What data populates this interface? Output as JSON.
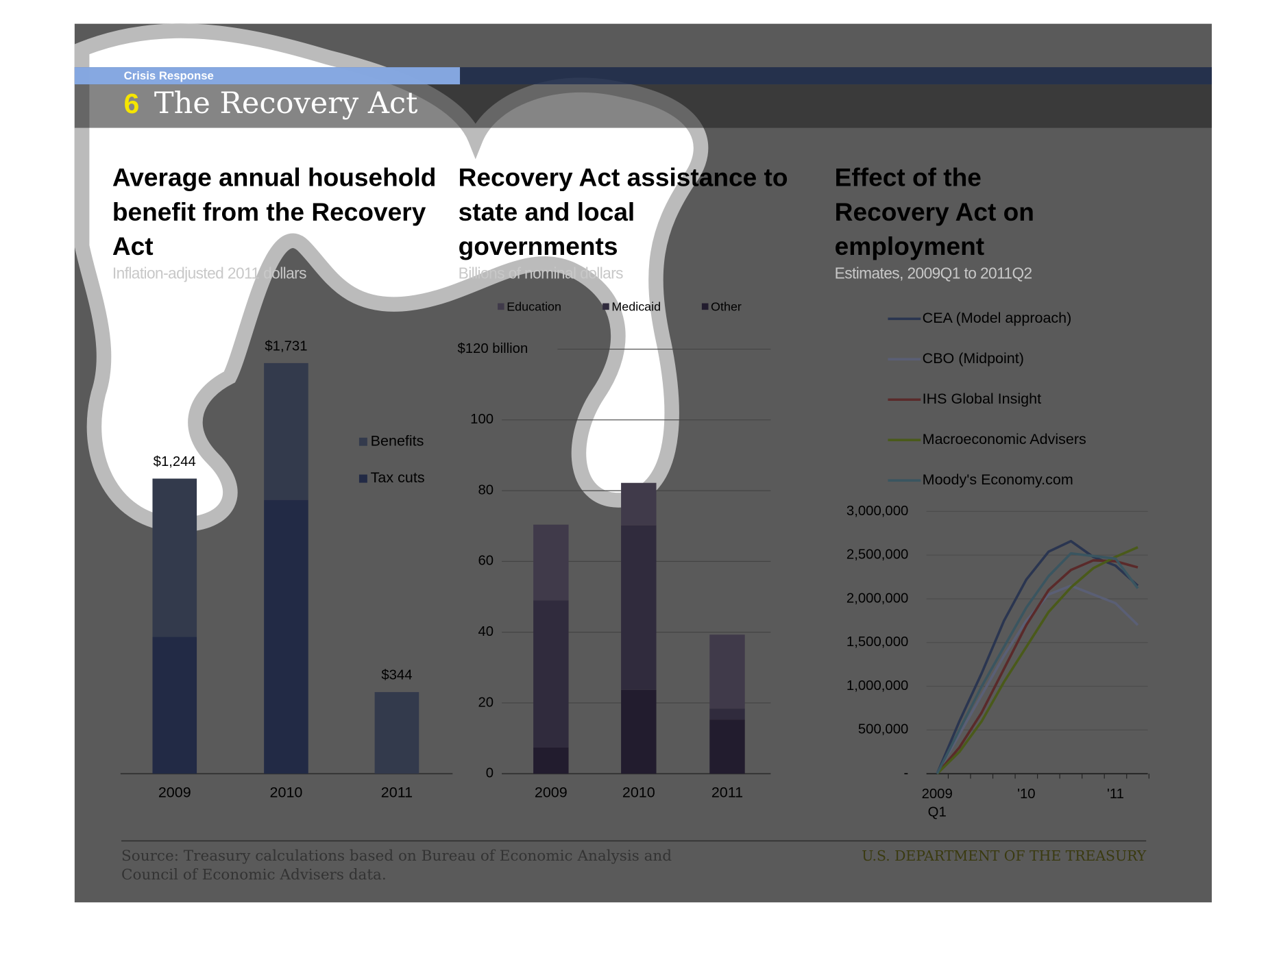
{
  "header": {
    "section": "Crisis Response",
    "number": "6",
    "title": "The Recovery Act"
  },
  "chart_data": [
    {
      "type": "stacked_bar",
      "title": "Average annual household benefit from the Recovery Act",
      "subtitle": "Inflation-adjusted 2011 dollars",
      "categories": [
        "2009",
        "2010",
        "2011"
      ],
      "series": [
        {
          "name": "Benefits",
          "color": "#333a4c",
          "values": [
            667,
            577,
            344
          ]
        },
        {
          "name": "Tax cuts",
          "color": "#222a45",
          "values": [
            577,
            1154,
            0
          ]
        }
      ],
      "totals": [
        1244,
        1731,
        344
      ],
      "total_labels": [
        "$1,244",
        "$1,731",
        "$344"
      ]
    },
    {
      "type": "stacked_bar",
      "title": "Recovery Act assistance to state and local governments",
      "subtitle": "Billions of nominal dollars",
      "categories": [
        "2009",
        "2010",
        "2011"
      ],
      "series": [
        {
          "name": "Education",
          "color": "#403a4a",
          "values": [
            21.4,
            12,
            20.9
          ]
        },
        {
          "name": "Medicaid",
          "color": "#302b3d",
          "values": [
            41.6,
            46.5,
            3.1
          ]
        },
        {
          "name": "Other",
          "color": "#221c2e",
          "values": [
            7.4,
            23.7,
            15.3
          ]
        }
      ],
      "ylim": [
        0,
        120
      ],
      "yticks": [
        0,
        20,
        40,
        60,
        80,
        100,
        {
          "value": 120,
          "label": "$120 billion"
        }
      ],
      "grid": true
    },
    {
      "type": "line",
      "title": "Effect of the Recovery Act on employment",
      "subtitle": "Estimates, 2009Q1 to 2011Q2",
      "categories": [
        "2009 Q1",
        null,
        null,
        null,
        "'10",
        null,
        null,
        null,
        "'11",
        null
      ],
      "series": [
        {
          "name": "CEA (Model approach)",
          "color": "#2a3550",
          "values": [
            0,
            600000,
            1150000,
            1750000,
            2220000,
            2540000,
            2660000,
            2480000,
            2380000,
            2150000
          ]
        },
        {
          "name": "CBO (Midpoint)",
          "color": "#5a5f75",
          "values": [
            0,
            450000,
            900000,
            1350000,
            1750000,
            2050000,
            2150000,
            2050000,
            1950000,
            1700000
          ]
        },
        {
          "name": "IHS Global Insight",
          "color": "#5a2a2a",
          "values": [
            0,
            300000,
            700000,
            1200000,
            1700000,
            2100000,
            2330000,
            2440000,
            2430000,
            2360000
          ]
        },
        {
          "name": "Macroeconomic Advisers",
          "color": "#4a5a1a",
          "values": [
            0,
            250000,
            600000,
            1050000,
            1450000,
            1850000,
            2130000,
            2350000,
            2480000,
            2590000
          ]
        },
        {
          "name": "Moody's Economy.com",
          "color": "#3a5560",
          "values": [
            0,
            500000,
            1000000,
            1450000,
            1900000,
            2260000,
            2520000,
            2490000,
            2460000,
            2120000
          ]
        }
      ],
      "ylim": [
        0,
        3000000
      ],
      "yticks": [
        {
          "value": 0,
          "label": "-"
        },
        {
          "value": 500000,
          "label": "500,000"
        },
        {
          "value": 1000000,
          "label": "1,000,000"
        },
        {
          "value": 1500000,
          "label": "1,500,000"
        },
        {
          "value": 2000000,
          "label": "2,000,000"
        },
        {
          "value": 2500000,
          "label": "2,500,000"
        },
        {
          "value": 3000000,
          "label": "3,000,000"
        }
      ],
      "grid": true
    }
  ],
  "footer": {
    "source": "Source: Treasury calculations based on Bureau of Economic Analysis and Council of Economic Advisers data.",
    "agency": "U.S. DEPARTMENT OF THE TREASURY"
  }
}
